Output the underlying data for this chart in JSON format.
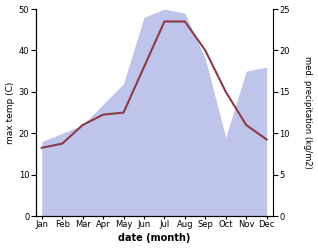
{
  "months": [
    "Jan",
    "Feb",
    "Mar",
    "Apr",
    "May",
    "Jun",
    "Jul",
    "Aug",
    "Sep",
    "Oct",
    "Nov",
    "Dec"
  ],
  "temp": [
    16.5,
    17.5,
    22.0,
    24.5,
    25.0,
    36.0,
    47.0,
    47.0,
    40.0,
    30.0,
    22.0,
    18.5
  ],
  "precip": [
    9.0,
    10.0,
    11.0,
    13.5,
    16.0,
    24.0,
    25.0,
    24.5,
    19.0,
    9.5,
    17.5,
    18.0
  ],
  "temp_color": "#8B3A4A",
  "precip_fill_color": "#b8bfe8",
  "left_ylim": [
    0,
    50
  ],
  "right_ylim": [
    0,
    25
  ],
  "left_yticks": [
    0,
    10,
    20,
    30,
    40,
    50
  ],
  "right_yticks": [
    0,
    5,
    10,
    15,
    20,
    25
  ],
  "ylabel_left": "max temp (C)",
  "ylabel_right": "med. precipitation (kg/m2)",
  "xlabel": "date (month)",
  "bg_color": "#ffffff"
}
